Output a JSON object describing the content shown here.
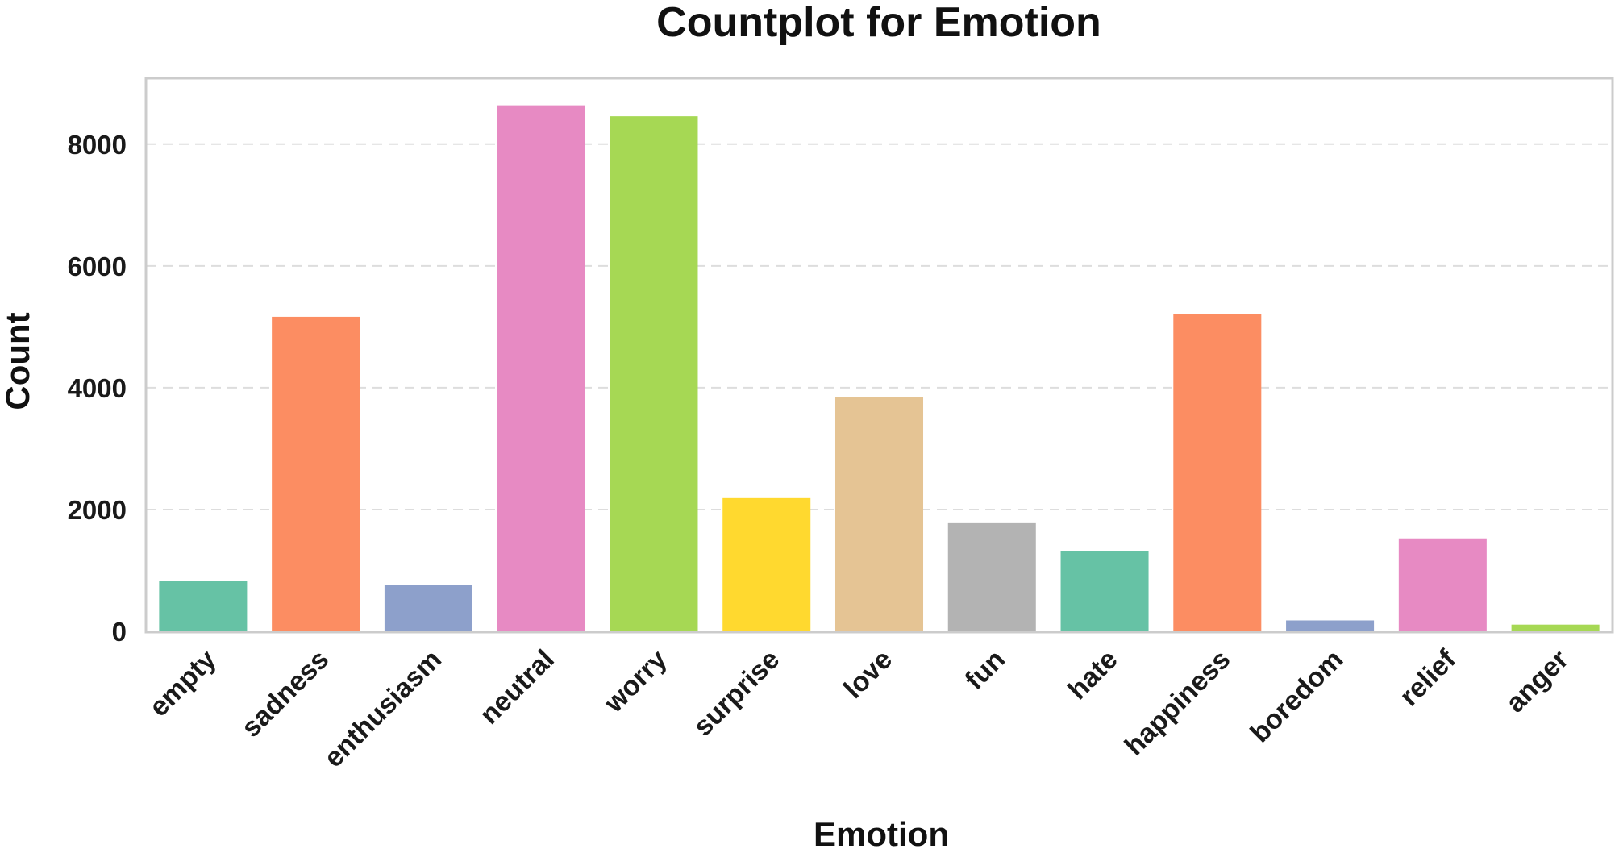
{
  "chart_data": {
    "type": "bar",
    "title": "Countplot for Emotion",
    "xlabel": "Emotion",
    "ylabel": "Count",
    "categories": [
      "empty",
      "sadness",
      "enthusiasm",
      "neutral",
      "worry",
      "surprise",
      "love",
      "fun",
      "hate",
      "happiness",
      "boredom",
      "relief",
      "anger"
    ],
    "values": [
      827,
      5165,
      759,
      8638,
      8459,
      2187,
      3842,
      1776,
      1323,
      5209,
      179,
      1526,
      110
    ],
    "colors": [
      "#66c2a5",
      "#fc8d62",
      "#8da0cb",
      "#e78ac3",
      "#a6d854",
      "#ffd92f",
      "#e5c494",
      "#b3b3b3",
      "#66c2a5",
      "#fc8d62",
      "#8da0cb",
      "#e78ac3",
      "#a6d854"
    ],
    "yticks": [
      0,
      2000,
      4000,
      6000,
      8000
    ],
    "ylim": [
      0,
      9070
    ],
    "grid": "horizontal dashed",
    "legend": "none"
  }
}
